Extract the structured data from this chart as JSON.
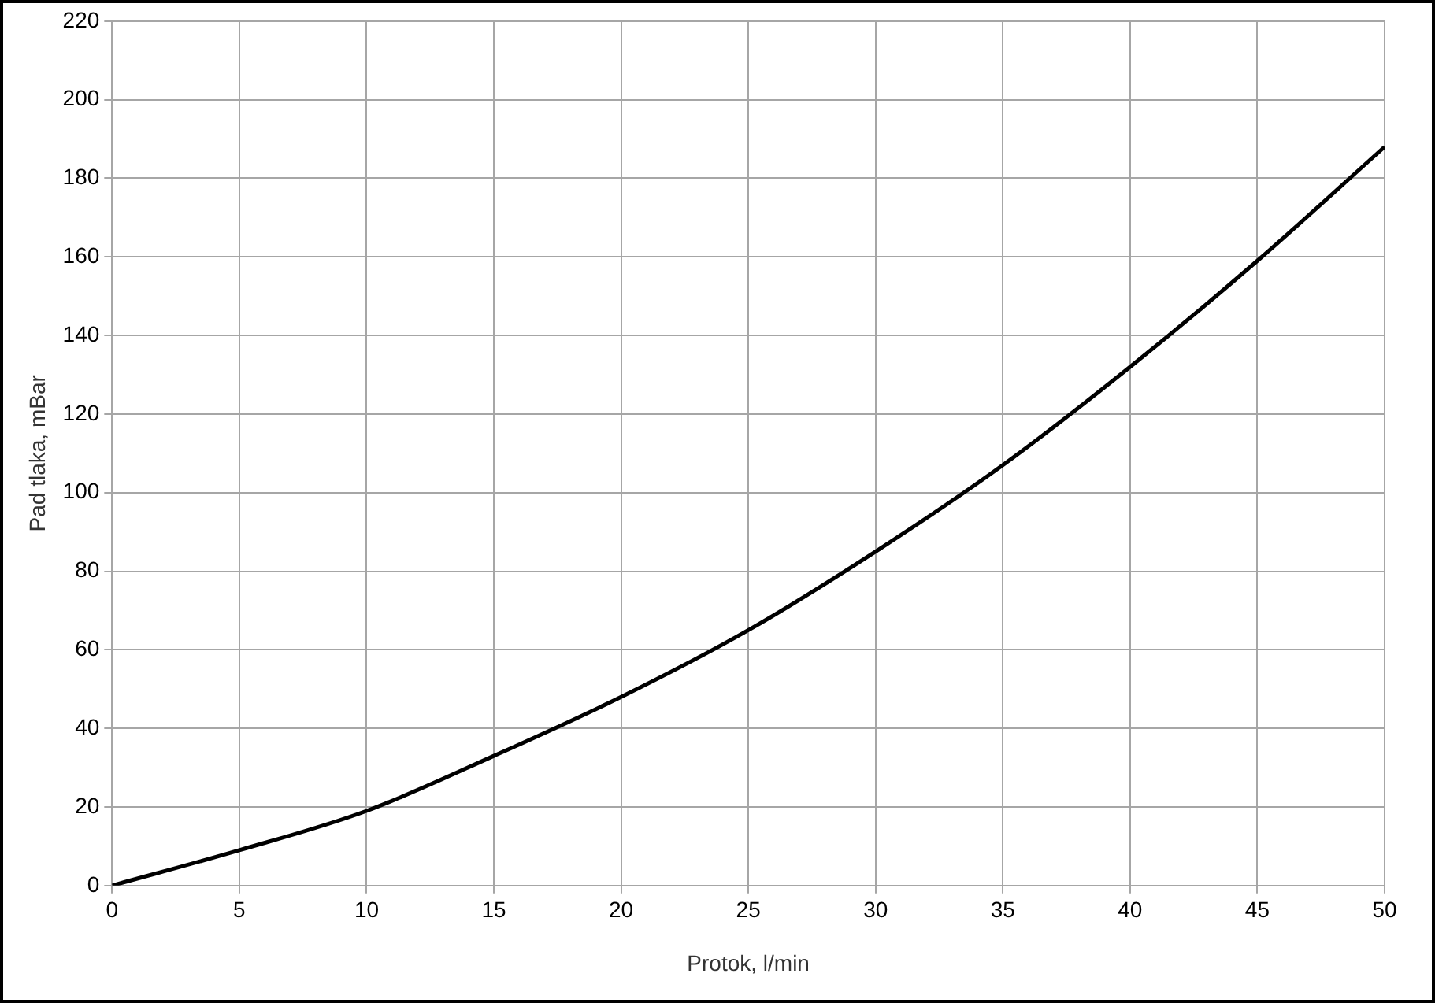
{
  "chart_data": {
    "type": "line",
    "xlabel": "Protok, l/min",
    "ylabel": "Pad tlaka, mBar",
    "x": [
      0,
      5,
      10,
      15,
      20,
      25,
      30,
      35,
      40,
      45,
      50
    ],
    "series": [
      {
        "color": "#000000",
        "values": [
          0,
          9,
          19,
          33,
          48,
          65,
          85,
          107,
          132,
          159,
          188
        ]
      }
    ],
    "xlim": [
      0,
      50
    ],
    "xticks": [
      0,
      5,
      10,
      15,
      20,
      25,
      30,
      35,
      40,
      45,
      50
    ],
    "ylim": [
      0,
      220
    ],
    "yticks": [
      0,
      20,
      40,
      60,
      80,
      100,
      120,
      140,
      160,
      180,
      200,
      220
    ],
    "grid": true,
    "legend": false,
    "marker": "none",
    "line_style": "solid"
  }
}
